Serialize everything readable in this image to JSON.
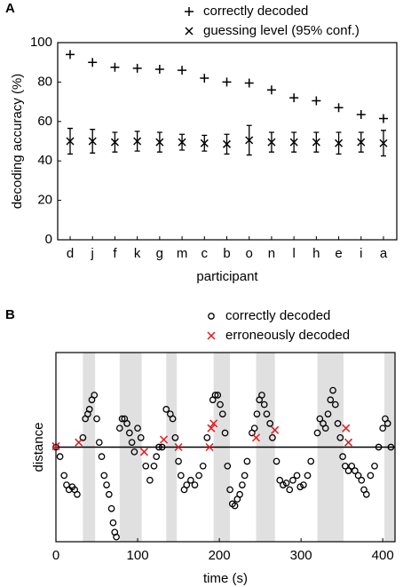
{
  "chart_data": [
    {
      "type": "scatter",
      "panel_label": "A",
      "x_label": "participant",
      "y_label": "decoding accuracy (%)",
      "categories": [
        "d",
        "j",
        "f",
        "k",
        "g",
        "m",
        "c",
        "b",
        "o",
        "n",
        "l",
        "h",
        "e",
        "i",
        "a"
      ],
      "series": [
        {
          "name": "correctly decoded",
          "color": "#000000",
          "marker": "+",
          "values": [
            94,
            90,
            87.5,
            87,
            86.5,
            86,
            82,
            80,
            79.5,
            76,
            72,
            70.5,
            67,
            63.5,
            61.5
          ]
        },
        {
          "name": "guessing level (95% conf.)",
          "color": "#000000",
          "marker": "x",
          "values": [
            50,
            50,
            49.5,
            50,
            49.5,
            49.5,
            49,
            48.5,
            50.5,
            49.5,
            49.5,
            49.5,
            49,
            49.5,
            49
          ],
          "errors": [
            6.5,
            6,
            5,
            5,
            5,
            4,
            4,
            5,
            7.5,
            5,
            5,
            5,
            5.5,
            5,
            6.5
          ]
        }
      ],
      "ylim": [
        0,
        100
      ],
      "yticks": [
        0,
        20,
        40,
        60,
        80,
        100
      ]
    },
    {
      "type": "scatter",
      "panel_label": "B",
      "x_label": "time (s)",
      "y_label": "distance",
      "xlim": [
        0,
        415
      ],
      "xticks": [
        0,
        100,
        200,
        300,
        400
      ],
      "ylim": [
        -1,
        1
      ],
      "reference_line": 0,
      "shaded_regions": [
        [
          33,
          48
        ],
        [
          78,
          105
        ],
        [
          135,
          148
        ],
        [
          193,
          213
        ],
        [
          245,
          268
        ],
        [
          320,
          352
        ],
        [
          402,
          415
        ]
      ],
      "series": [
        {
          "name": "correctly decoded",
          "color": "#000000",
          "marker": "o",
          "x": [
            0,
            5,
            10,
            13,
            16,
            20,
            23,
            26,
            33,
            36,
            39,
            41,
            44,
            47,
            50,
            53,
            56,
            59,
            62,
            65,
            68,
            70,
            72,
            74,
            78,
            81,
            84,
            87,
            90,
            93,
            96,
            100,
            104,
            110,
            115,
            120,
            123,
            126,
            130,
            135,
            140,
            143,
            146,
            150,
            153,
            157,
            160,
            165,
            170,
            175,
            180,
            185,
            192,
            195,
            198,
            201,
            204,
            207,
            210,
            213,
            216,
            219,
            222,
            225,
            228,
            231,
            234,
            240,
            243,
            246,
            249,
            252,
            255,
            258,
            262,
            265,
            270,
            274,
            278,
            282,
            286,
            290,
            295,
            299,
            303,
            308,
            312,
            320,
            323,
            327,
            330,
            333,
            336,
            339,
            342,
            345,
            348,
            351,
            354,
            358,
            362,
            366,
            370,
            374,
            377,
            380,
            385,
            390,
            395,
            400,
            403,
            406,
            410
          ],
          "values": [
            0,
            -0.1,
            -0.3,
            -0.4,
            -0.45,
            -0.42,
            -0.45,
            -0.5,
            0.1,
            0.3,
            0.35,
            0.4,
            0.5,
            0.55,
            0.3,
            0.05,
            -0.1,
            -0.3,
            -0.4,
            -0.5,
            -0.65,
            -0.8,
            -0.9,
            -0.95,
            0.2,
            0.3,
            0.3,
            0.25,
            0.15,
            0.05,
            -0.05,
            0.2,
            0.1,
            -0.2,
            -0.35,
            -0.2,
            -0.1,
            0,
            0,
            0.4,
            0.35,
            0.3,
            0.1,
            -0.15,
            -0.3,
            -0.45,
            -0.4,
            -0.35,
            -0.4,
            -0.3,
            -0.2,
            0.1,
            0.5,
            0.55,
            0.55,
            0.45,
            0.35,
            0.15,
            -0.2,
            -0.45,
            -0.6,
            -0.62,
            -0.55,
            -0.5,
            -0.4,
            -0.3,
            -0.15,
            0.15,
            0.2,
            0.35,
            0.5,
            0.55,
            0.45,
            0.35,
            0.25,
            0.1,
            -0.15,
            -0.35,
            -0.4,
            -0.38,
            -0.45,
            -0.35,
            -0.3,
            -0.42,
            -0.4,
            -0.3,
            -0.15,
            0.15,
            0.3,
            0.25,
            0.2,
            0.35,
            0.5,
            0.6,
            0.45,
            0.25,
            0.1,
            -0.1,
            -0.2,
            -0.25,
            -0.2,
            -0.25,
            -0.3,
            -0.35,
            -0.45,
            -0.5,
            -0.3,
            -0.2,
            0,
            0.2,
            0.3,
            0.25,
            0
          ]
        },
        {
          "name": "erroneously decoded",
          "color": "#e31a1c",
          "marker": "x",
          "x": [
            0,
            28,
            108,
            132,
            150,
            188,
            190,
            193,
            245,
            268,
            355,
            358
          ],
          "values": [
            0.01,
            0.05,
            -0.05,
            0.08,
            0,
            0,
            0.2,
            0.25,
            0.1,
            0.18,
            0.2,
            0.05
          ]
        }
      ]
    }
  ]
}
